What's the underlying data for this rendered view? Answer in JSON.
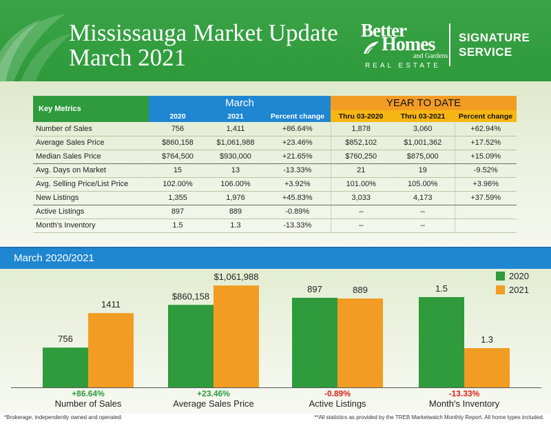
{
  "header": {
    "title_line1": "Mississauga Market Update",
    "title_line2": "March 2021",
    "logo_better": "Better",
    "logo_homes": "Homes",
    "logo_gardens": "and Gardens",
    "logo_real_estate": "REAL ESTATE",
    "signature_line1": "SIGNATURE",
    "signature_line2": "SERVICE"
  },
  "colors": {
    "green": "#2f9b3c",
    "blue": "#1f86d2",
    "orange": "#f39c23",
    "negative_red": "#e0201b",
    "positive_green": "#2f9b3c"
  },
  "table": {
    "key_header": "Key Metrics",
    "march_header": "March",
    "ytd_header": "YEAR TO DATE",
    "sub_headers": [
      "2020",
      "2021",
      "Percent change",
      "Thru 03-2020",
      "Thru 03-2021",
      "Percent change"
    ],
    "rows": [
      {
        "label": "Number of Sales",
        "cells": [
          "756",
          "1,411",
          "+86.64%",
          "1,878",
          "3,060",
          "+62.94%"
        ]
      },
      {
        "label": "Average Sales Price",
        "cells": [
          "$860,158",
          "$1,061,988",
          "+23.46%",
          "$852,102",
          "$1,001,362",
          "+17.52%"
        ]
      },
      {
        "label": "Median Sales Price",
        "cells": [
          "$764,500",
          "$930,000",
          "+21.65%",
          "$760,250",
          "$875,000",
          "+15.09%"
        ]
      },
      {
        "label": "Avg. Days on Market",
        "cells": [
          "15",
          "13",
          "-13.33%",
          "21",
          "19",
          "-9.52%"
        ]
      },
      {
        "label": "Avg. Selling Price/List Price",
        "cells": [
          "102.00%",
          "106.00%",
          "+3.92%",
          "101.00%",
          "105.00%",
          "+3.96%"
        ]
      },
      {
        "label": "New Listings",
        "cells": [
          "1,355",
          "1,976",
          "+45.83%",
          "3,033",
          "4,173",
          "+37.59%"
        ]
      },
      {
        "label": "Active Listings",
        "cells": [
          "897",
          "889",
          "-0.89%",
          "–",
          "–",
          ""
        ]
      },
      {
        "label": "Month’s Inventory",
        "cells": [
          "1.5",
          "1.3",
          "-13.33%",
          "–",
          "–",
          ""
        ]
      }
    ]
  },
  "section_title": "March 2020/2021",
  "chart_data": {
    "type": "bar",
    "legend": [
      "2020",
      "2021"
    ],
    "legend_position": "top-right",
    "grid": false,
    "groups": [
      {
        "category": "Number of Sales",
        "change": "+86.64%",
        "values": [
          756,
          1411
        ],
        "labels": [
          "756",
          "1411"
        ]
      },
      {
        "category": "Average Sales Price",
        "change": "+23.46%",
        "values": [
          860158,
          1061988
        ],
        "labels": [
          "$860,158",
          "$1,061,988"
        ]
      },
      {
        "category": "Active Listings",
        "change": "-0.89%",
        "values": [
          897,
          889
        ],
        "labels": [
          "897",
          "889"
        ]
      },
      {
        "category": "Month's Inventory",
        "change": "-13.33%",
        "values": [
          1.5,
          1.3
        ],
        "labels": [
          "1.5",
          "1.3"
        ]
      }
    ]
  },
  "footer": {
    "left": "*Brokerage, independently owned and operated.",
    "right": "**All statistics as provided by the TREB Marketwatch Monthly Report. All home types included."
  }
}
